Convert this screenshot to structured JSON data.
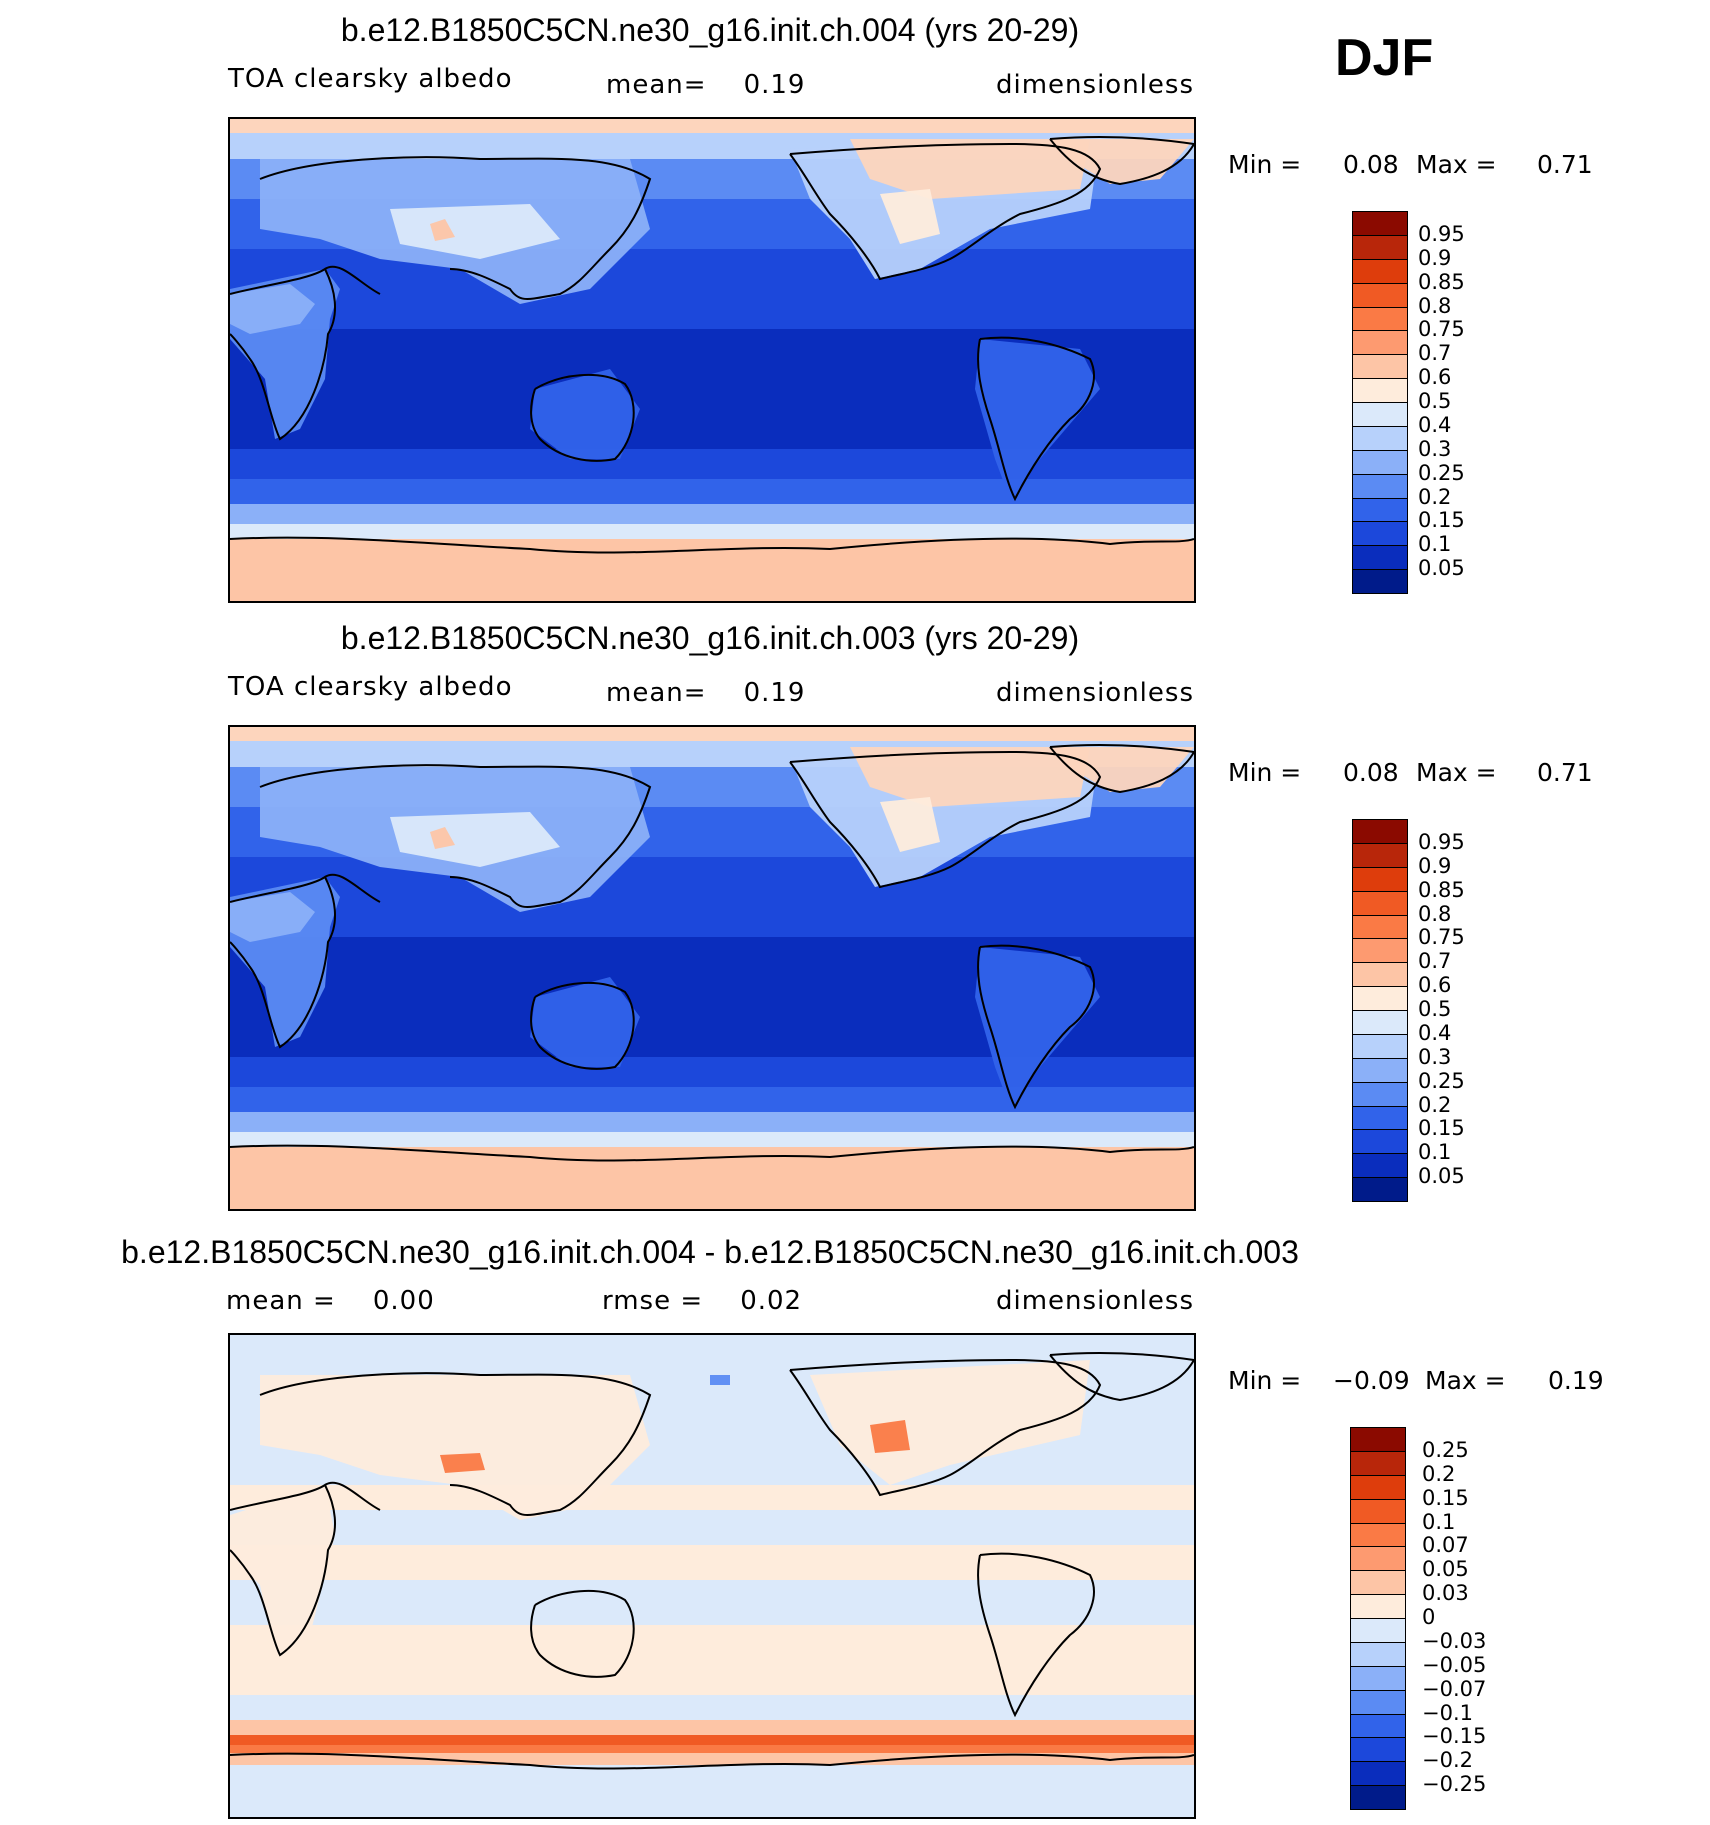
{
  "season": "DJF",
  "chart_data": [
    {
      "type": "heatmap",
      "title": "b.e12.B1850C5CN.ne30_g16.init.ch.004 (yrs 20-29)",
      "left_label": "TOA clearsky albedo",
      "center_label": "mean=    0.19",
      "right_label": "dimensionless",
      "min_label": "Min =",
      "min_value": "0.08",
      "max_label": "Max =",
      "max_value": "0.71",
      "colorbar_levels": [
        "0.95",
        "0.9",
        "0.85",
        "0.8",
        "0.75",
        "0.7",
        "0.6",
        "0.5",
        "0.4",
        "0.3",
        "0.25",
        "0.2",
        "0.15",
        "0.1",
        "0.05"
      ],
      "colorbar_colors": [
        "#8b0a00",
        "#b8260a",
        "#de3d0c",
        "#f05a24",
        "#fa7a45",
        "#fd9a70",
        "#fdc5a6",
        "#feecdc",
        "#dbe9fa",
        "#b7d1fb",
        "#8bb0f8",
        "#5b8bf3",
        "#3163ea",
        "#1c48db",
        "#0a2dbd",
        "#001b8a"
      ],
      "field": "albedo_a"
    },
    {
      "type": "heatmap",
      "title": "b.e12.B1850C5CN.ne30_g16.init.ch.003 (yrs 20-29)",
      "left_label": "TOA clearsky albedo",
      "center_label": "mean=    0.19",
      "right_label": "dimensionless",
      "min_label": "Min =",
      "min_value": "0.08",
      "max_label": "Max =",
      "max_value": "0.71",
      "colorbar_levels": [
        "0.95",
        "0.9",
        "0.85",
        "0.8",
        "0.75",
        "0.7",
        "0.6",
        "0.5",
        "0.4",
        "0.3",
        "0.25",
        "0.2",
        "0.15",
        "0.1",
        "0.05"
      ],
      "colorbar_colors": [
        "#8b0a00",
        "#b8260a",
        "#de3d0c",
        "#f05a24",
        "#fa7a45",
        "#fd9a70",
        "#fdc5a6",
        "#feecdc",
        "#dbe9fa",
        "#b7d1fb",
        "#8bb0f8",
        "#5b8bf3",
        "#3163ea",
        "#1c48db",
        "#0a2dbd",
        "#001b8a"
      ],
      "field": "albedo_b"
    },
    {
      "type": "heatmap",
      "title": "b.e12.B1850C5CN.ne30_g16.init.ch.004 - b.e12.B1850C5CN.ne30_g16.init.ch.003",
      "left_label": "mean =    0.00",
      "center_label": "rmse =    0.02",
      "right_label": "dimensionless",
      "min_label": "Min =",
      "min_value": "−0.09",
      "max_label": "Max =",
      "max_value": "0.19",
      "colorbar_levels": [
        "0.25",
        "0.2",
        "0.15",
        "0.1",
        "0.07",
        "0.05",
        "0.03",
        "0",
        "−0.03",
        "−0.05",
        "−0.07",
        "−0.1",
        "−0.15",
        "−0.2",
        "−0.25"
      ],
      "colorbar_colors": [
        "#8b0a00",
        "#b8260a",
        "#de3d0c",
        "#f05a24",
        "#fa7a45",
        "#fd9a70",
        "#fdc5a6",
        "#feecdc",
        "#dbe9fa",
        "#b7d1fb",
        "#8bb0f8",
        "#5b8bf3",
        "#3163ea",
        "#1c48db",
        "#0a2dbd",
        "#001b8a"
      ],
      "field": "difference"
    }
  ]
}
